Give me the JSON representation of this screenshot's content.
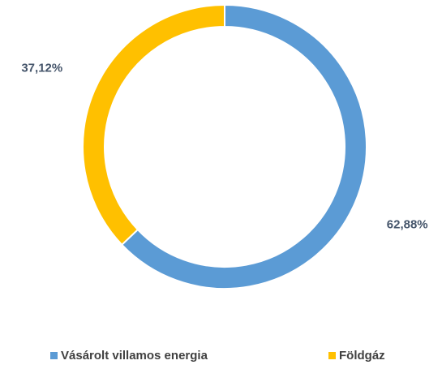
{
  "chart_data": {
    "type": "donut",
    "categories": [
      "Vásárolt villamos energia",
      "Földgáz"
    ],
    "values": [
      62.88,
      37.12
    ],
    "value_labels": [
      "62,88%",
      "37,12%"
    ],
    "colors": [
      "#5b9bd5",
      "#ffc000"
    ],
    "legend": "bottom"
  }
}
